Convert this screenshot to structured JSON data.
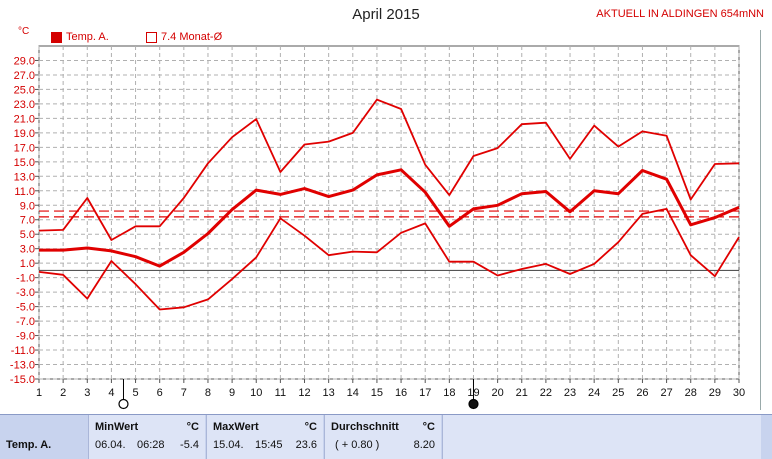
{
  "header": {
    "title": "April 2015",
    "location_badge": "AKTUELL IN ALDINGEN 654mNN",
    "unit": "°C",
    "legend": [
      {
        "label": "Temp. A.",
        "style": "filled"
      },
      {
        "label": "7.4 Monat-Ø",
        "style": "outline"
      }
    ]
  },
  "chart_data": {
    "type": "line",
    "title": "April 2015",
    "ylabel": "°C",
    "ylim": [
      -15,
      31
    ],
    "yticks": [
      29.0,
      27.0,
      25.0,
      23.0,
      21.0,
      19.0,
      17.0,
      15.0,
      13.0,
      11.0,
      9.0,
      7.0,
      5.0,
      3.0,
      1.0,
      -1.0,
      -3.0,
      -5.0,
      -7.0,
      -9.0,
      -11.0,
      -13.0,
      -15.0
    ],
    "ytick_labels": [
      "29.0",
      "27.0",
      "25.0",
      "23.0",
      "21.0",
      "19.0",
      "17.0",
      "15.0",
      "13.0",
      "11.0",
      "9.0",
      "7.0",
      "5.0",
      "3.0",
      "1.0",
      "-1.0",
      "-3.0",
      "-5.0",
      "-7.0",
      "-9.0",
      "-11.0",
      "-13.0",
      "-15.0"
    ],
    "x": [
      1,
      2,
      3,
      4,
      5,
      6,
      7,
      8,
      9,
      10,
      11,
      12,
      13,
      14,
      15,
      16,
      17,
      18,
      19,
      20,
      21,
      22,
      23,
      24,
      25,
      26,
      27,
      28,
      29,
      30
    ],
    "grid": true,
    "series": [
      {
        "name": "Temp. A.",
        "role": "average",
        "color": "#e00000",
        "values": [
          2.8,
          2.8,
          3.1,
          2.7,
          1.9,
          0.6,
          2.5,
          5.1,
          8.4,
          11.1,
          10.5,
          11.3,
          10.2,
          11.1,
          13.2,
          13.9,
          10.8,
          6.1,
          8.5,
          9.0,
          10.6,
          10.9,
          8.1,
          11.0,
          10.6,
          13.8,
          12.6,
          6.3,
          7.3,
          8.7
        ]
      },
      {
        "role": "max",
        "color": "#e00000",
        "values": [
          5.5,
          5.6,
          10.0,
          4.2,
          6.1,
          6.1,
          10.0,
          14.8,
          18.4,
          20.9,
          13.6,
          17.4,
          17.8,
          19.0,
          23.6,
          22.3,
          14.6,
          10.4,
          15.8,
          16.9,
          20.2,
          20.4,
          15.4,
          20.0,
          17.1,
          19.2,
          18.6,
          9.8,
          14.7,
          14.8
        ]
      },
      {
        "role": "min",
        "color": "#e00000",
        "values": [
          -0.2,
          -0.6,
          -3.9,
          1.3,
          -1.9,
          -5.4,
          -5.1,
          -4.0,
          -1.2,
          1.8,
          7.2,
          4.8,
          2.1,
          2.6,
          2.5,
          5.2,
          6.5,
          1.2,
          1.2,
          -0.7,
          0.2,
          0.9,
          -0.5,
          0.9,
          3.9,
          7.8,
          8.5,
          2.1,
          -0.8,
          4.6
        ]
      }
    ],
    "reference_lines": [
      {
        "label": "7.4 Monat-Ø",
        "value": 7.4,
        "style": "dashed"
      },
      {
        "value": 8.2,
        "style": "dashed"
      },
      {
        "value": 0.0,
        "style": "solid",
        "color": "#555555"
      }
    ],
    "moon_phases": [
      {
        "day": 4.5,
        "phase": "full"
      },
      {
        "day": 19,
        "phase": "new"
      }
    ]
  },
  "stats": {
    "row_label": "Temp. A.",
    "min": {
      "header": "MinWert",
      "unit": "°C",
      "date": "06.04.",
      "time": "06:28",
      "value": "-5.4"
    },
    "max": {
      "header": "MaxWert",
      "unit": "°C",
      "date": "15.04.",
      "time": "15:45",
      "value": "23.6"
    },
    "avg": {
      "header": "Durchschnitt",
      "unit": "°C",
      "delta": "( + 0.80 )",
      "value": "8.20"
    }
  }
}
